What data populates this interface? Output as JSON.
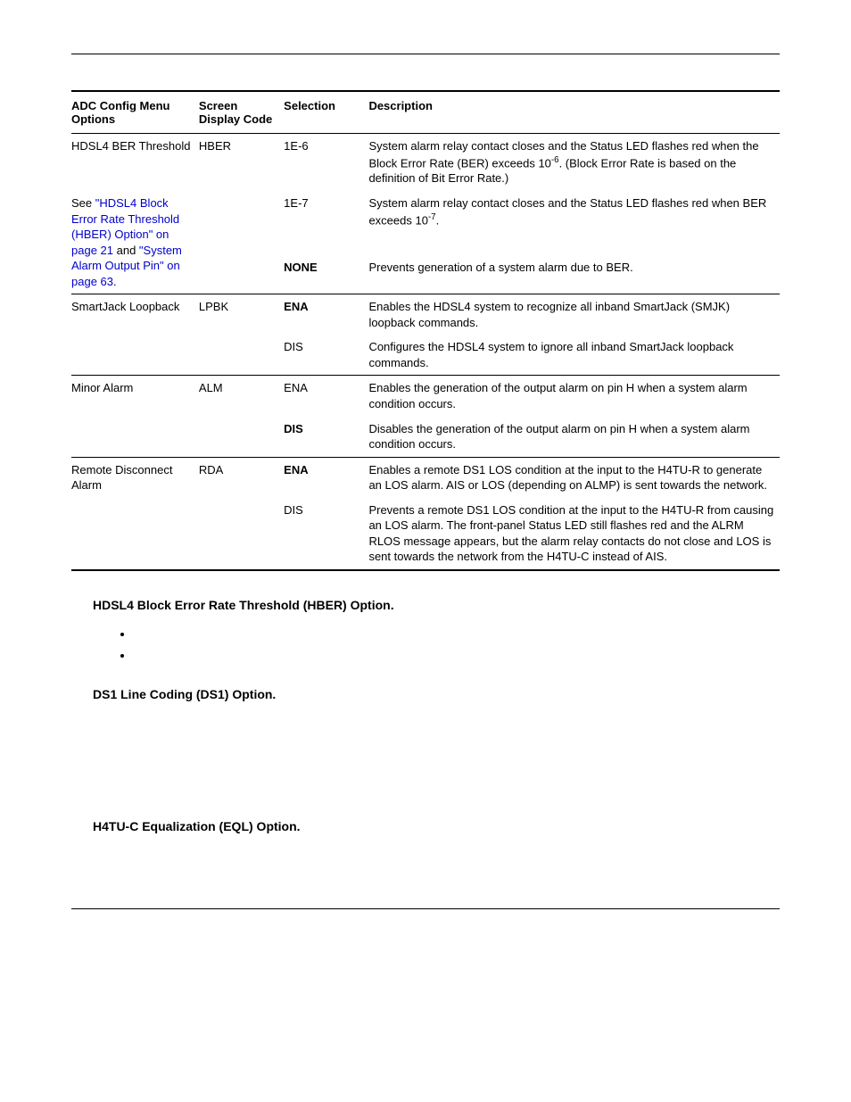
{
  "table": {
    "headers": {
      "col0": "ADC Config Menu Options",
      "col1": "Screen Display Code",
      "col2": "Selection",
      "col3": "Description"
    },
    "groups": [
      {
        "rows": [
          {
            "opt_plain": "HDSL4 BER Threshold",
            "opt_link_prefix": "",
            "opt_link1": "",
            "opt_mid": "",
            "opt_link2": "",
            "opt_suffix": "",
            "code": "HBER",
            "sel": "1E-6",
            "sel_bold": false,
            "desc_a": "System alarm relay contact closes and the Status LED flashes red when the Block Error Rate (BER) exceeds 10",
            "desc_sup": "-6",
            "desc_b": ". (Block Error Rate is based on the definition of Bit Error Rate.)"
          },
          {
            "opt_plain": "",
            "opt_link_prefix": "See ",
            "opt_link1": "\"HDSL4 Block Error Rate Threshold (HBER) Option\" on page 21",
            "opt_mid": " and ",
            "opt_link2": "\"System Alarm Output Pin\" on page 63",
            "opt_suffix": ".",
            "code": "",
            "sel": "1E-7",
            "sel_bold": false,
            "desc_a": "System alarm relay contact closes and the Status LED flashes red when BER exceeds 10",
            "desc_sup": "-7",
            "desc_b": "."
          },
          {
            "opt_plain": "",
            "opt_link_prefix": "",
            "opt_link1": "",
            "opt_mid": "",
            "opt_link2": "",
            "opt_suffix": "",
            "code": "",
            "sel": "NONE",
            "sel_bold": true,
            "desc_a": "Prevents generation of a system alarm due to BER.",
            "desc_sup": "",
            "desc_b": ""
          }
        ]
      },
      {
        "rows": [
          {
            "opt_plain": "SmartJack Loopback",
            "code": "LPBK",
            "sel": "ENA",
            "sel_bold": true,
            "desc_a": "Enables the HDSL4 system to recognize all inband SmartJack (SMJK) loopback commands.",
            "desc_sup": "",
            "desc_b": ""
          },
          {
            "opt_plain": "",
            "code": "",
            "sel": "DIS",
            "sel_bold": false,
            "desc_a": "Configures the HDSL4 system to ignore all inband SmartJack loopback commands.",
            "desc_sup": "",
            "desc_b": ""
          }
        ]
      },
      {
        "rows": [
          {
            "opt_plain": "Minor Alarm",
            "code": "ALM",
            "sel": "ENA",
            "sel_bold": false,
            "desc_a": "Enables the generation of the output alarm on pin H when a system alarm condition occurs.",
            "desc_sup": "",
            "desc_b": ""
          },
          {
            "opt_plain": "",
            "code": "",
            "sel": "DIS",
            "sel_bold": true,
            "desc_a": "Disables the generation of the output alarm on pin H when a system alarm condition occurs.",
            "desc_sup": "",
            "desc_b": ""
          }
        ]
      },
      {
        "last": true,
        "rows": [
          {
            "opt_plain": "Remote Disconnect Alarm",
            "code": "RDA",
            "sel": "ENA",
            "sel_bold": true,
            "desc_a": "Enables a remote DS1 LOS condition at the input to the H4TU-R to generate an LOS alarm. AIS or LOS (depending on ALMP) is sent towards the network.",
            "desc_sup": "",
            "desc_b": ""
          },
          {
            "opt_plain": "",
            "code": "",
            "sel": "DIS",
            "sel_bold": false,
            "desc_a": "Prevents a remote DS1 LOS condition at the input to the H4TU-R from causing an LOS alarm. The front-panel Status LED still flashes red and the ALRM RLOS message appears, but the alarm relay contacts do not close and LOS is sent towards the network from the H4TU-C instead of AIS.",
            "desc_sup": "",
            "desc_b": ""
          }
        ]
      }
    ]
  },
  "sections": {
    "s1": "HDSL4 Block Error Rate Threshold (HBER) Option.",
    "s2": "DS1 Line Coding (DS1) Option.",
    "s3": "H4TU-C Equalization (EQL) Option."
  }
}
